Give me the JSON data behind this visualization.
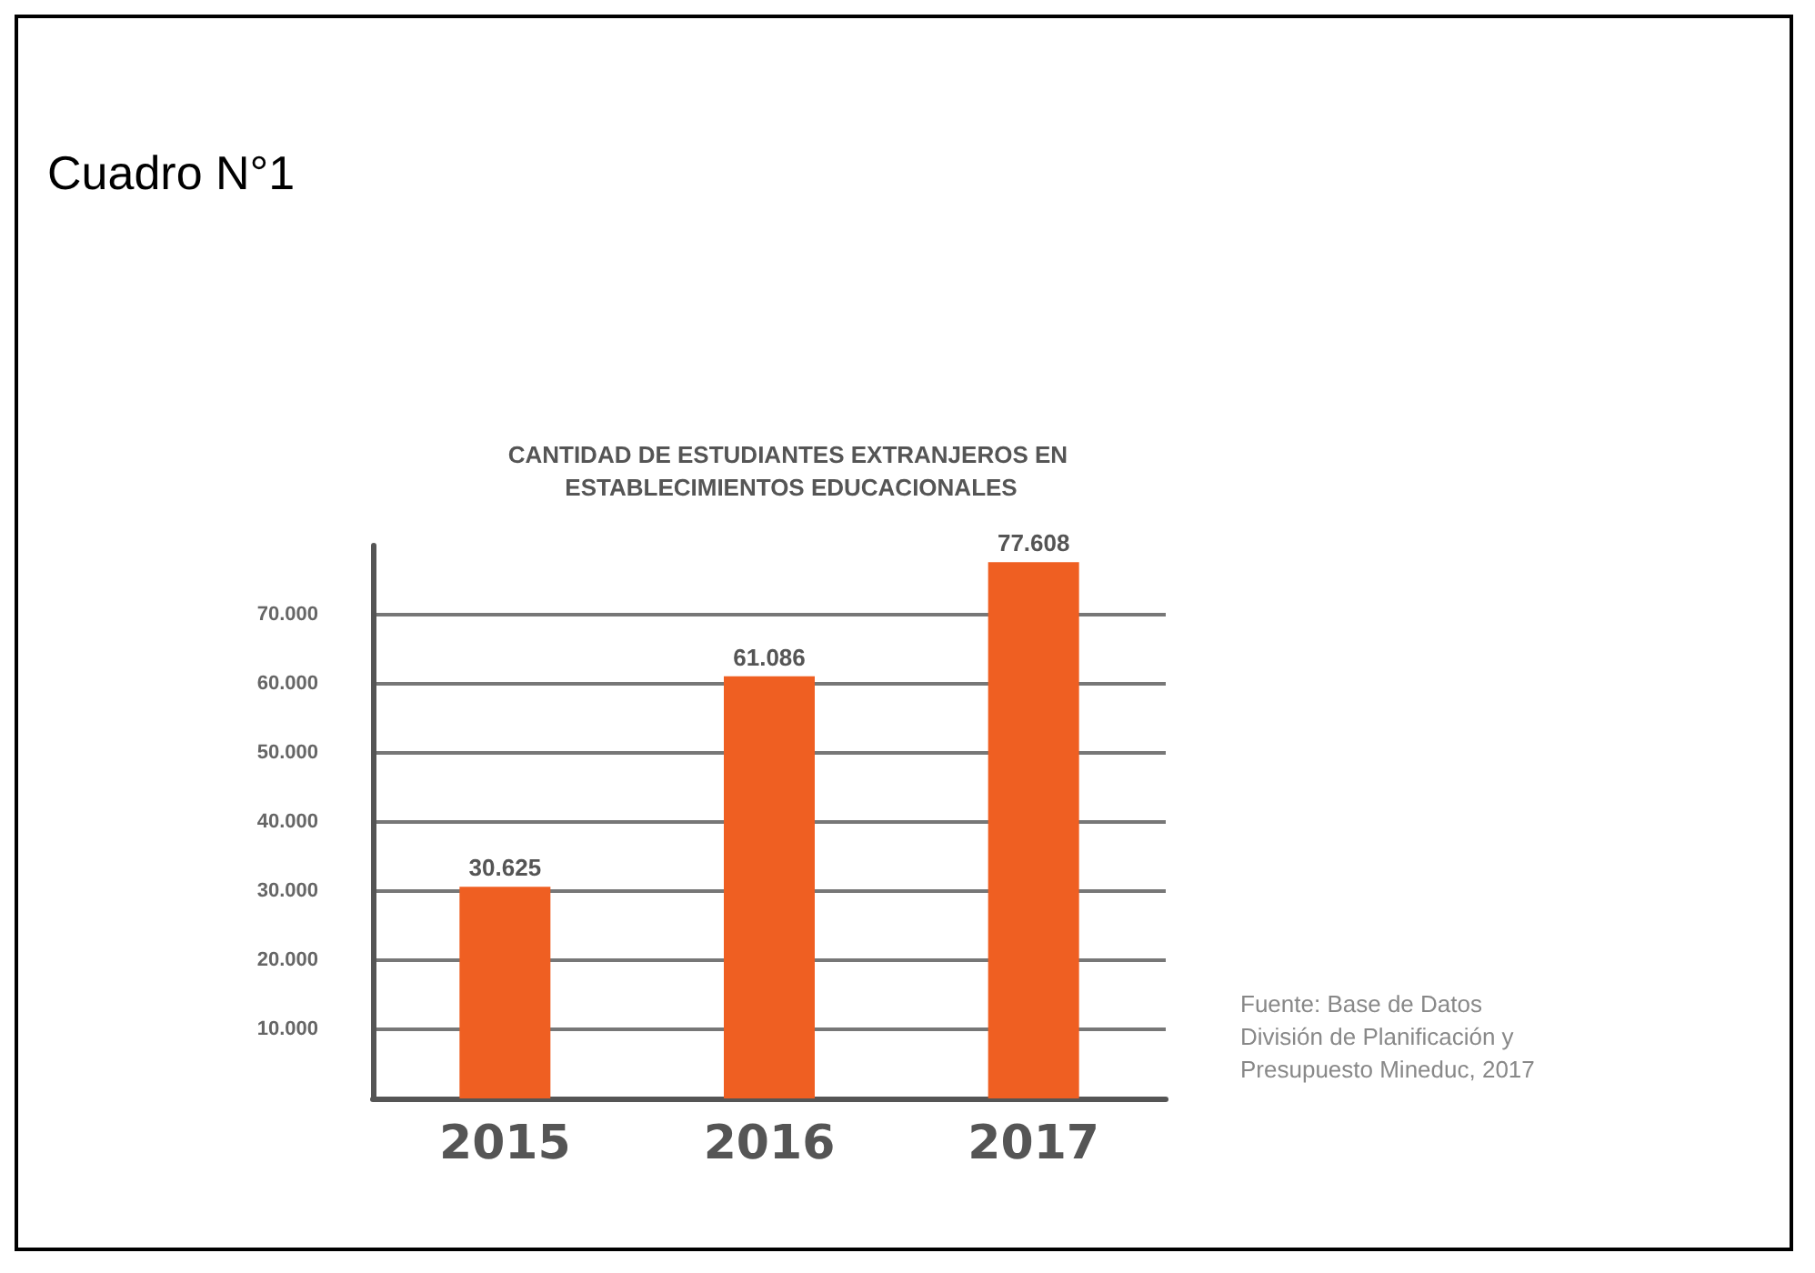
{
  "chart_data": {
    "type": "bar",
    "title": "CANTIDAD DE ESTUDIANTES EXTRANJEROS EN ESTABLECIMIENTOS EDUCACIONALES",
    "annotations": [
      "Cuadro N°1",
      "Fuente: Base de Datos División de Planificación y Presupuesto Mineduc, 2017"
    ],
    "categories": [
      "2015",
      "2016",
      "2017"
    ],
    "values": [
      30625,
      61086,
      77608
    ],
    "value_labels": [
      "30.625",
      "61.086",
      "77.608"
    ],
    "color": "#ef5f22",
    "ylim": [
      0,
      80000
    ],
    "yticks": [
      {
        "value": 10000,
        "label": "10.000"
      },
      {
        "value": 20000,
        "label": "20.000"
      },
      {
        "value": 30000,
        "label": "30.000"
      },
      {
        "value": 40000,
        "label": "40.000"
      },
      {
        "value": 50000,
        "label": "50.000"
      },
      {
        "value": 60000,
        "label": "60.000"
      },
      {
        "value": 70000,
        "label": "70.000"
      }
    ],
    "grid": "y"
  }
}
